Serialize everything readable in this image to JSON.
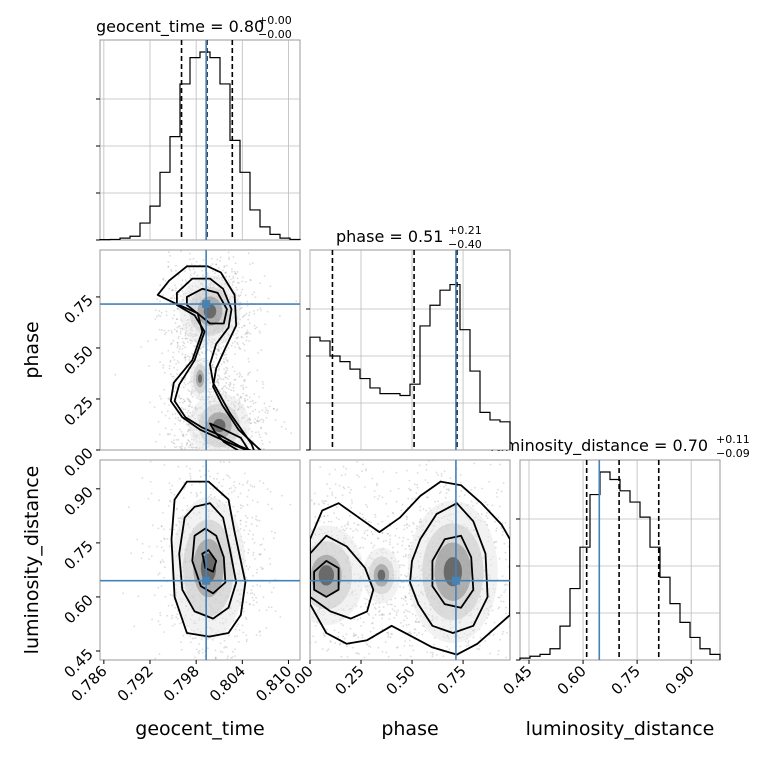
{
  "chart_data": {
    "type": "corner",
    "parameters": [
      "geocent_time",
      "phase",
      "luminosity_distance"
    ],
    "truth": {
      "geocent_time": 0.7993,
      "phase": 0.715,
      "luminosity_distance": 0.645
    },
    "titles": [
      {
        "name": "geocent_time",
        "median": "0.80",
        "plus": "+0.00",
        "minus": "−0.00"
      },
      {
        "name": "phase",
        "median": "0.51",
        "plus": "+0.21",
        "minus": "−0.40"
      },
      {
        "name": "luminosity_distance",
        "median": "0.70",
        "plus": "+0.11",
        "minus": "−0.09"
      }
    ],
    "axes": {
      "geocent_time": {
        "range": [
          0.7855,
          0.8115
        ],
        "ticks": [
          "0.786",
          "0.792",
          "0.798",
          "0.804",
          "0.810"
        ],
        "tick_values": [
          0.786,
          0.792,
          0.798,
          0.804,
          0.81
        ]
      },
      "phase": {
        "range": [
          0.0,
          0.98
        ],
        "ticks": [
          "0.00",
          "0.25",
          "0.50",
          "0.75"
        ],
        "tick_values": [
          0.0,
          0.25,
          0.5,
          0.75
        ]
      },
      "luminosity_distance": {
        "range": [
          0.425,
          0.98
        ],
        "ticks": [
          "0.45",
          "0.60",
          "0.75",
          "0.90"
        ],
        "tick_values": [
          0.45,
          0.6,
          0.75,
          0.9
        ]
      }
    },
    "histograms": {
      "geocent_time": {
        "quantiles": [
          0.7961,
          0.7994,
          0.8027
        ],
        "edges": [
          0.7855,
          0.7868,
          0.7881,
          0.7894,
          0.7907,
          0.792,
          0.7933,
          0.7946,
          0.7959,
          0.7972,
          0.7985,
          0.7998,
          0.8011,
          0.8024,
          0.8037,
          0.805,
          0.8063,
          0.8076,
          0.8089,
          0.8102,
          0.8115
        ],
        "heights": [
          0.002,
          0.003,
          0.01,
          0.02,
          0.09,
          0.18,
          0.36,
          0.55,
          0.83,
          0.97,
          1.0,
          0.97,
          0.83,
          0.53,
          0.36,
          0.16,
          0.07,
          0.03,
          0.01,
          0.003
        ]
      },
      "phase": {
        "quantiles": [
          0.11,
          0.51,
          0.72
        ],
        "edges": [
          0.0,
          0.049,
          0.098,
          0.147,
          0.196,
          0.245,
          0.294,
          0.343,
          0.392,
          0.441,
          0.49,
          0.539,
          0.588,
          0.637,
          0.686,
          0.735,
          0.784,
          0.833,
          0.882,
          0.931,
          0.98
        ],
        "heights": [
          0.6,
          0.58,
          0.5,
          0.47,
          0.43,
          0.38,
          0.33,
          0.3,
          0.3,
          0.29,
          0.35,
          0.66,
          0.77,
          0.85,
          0.88,
          0.64,
          0.42,
          0.2,
          0.16,
          0.15
        ]
      },
      "luminosity_distance": {
        "quantiles": [
          0.61,
          0.7,
          0.81
        ],
        "edges": [
          0.425,
          0.45275,
          0.4805,
          0.50825,
          0.536,
          0.56375,
          0.5915,
          0.61925,
          0.647,
          0.67475,
          0.7025,
          0.73025,
          0.758,
          0.78575,
          0.8135,
          0.84125,
          0.869,
          0.89675,
          0.9245,
          0.95225,
          0.98
        ],
        "heights": [
          0.01,
          0.02,
          0.03,
          0.06,
          0.18,
          0.38,
          0.6,
          0.88,
          1.0,
          0.96,
          0.9,
          0.84,
          0.76,
          0.6,
          0.44,
          0.3,
          0.2,
          0.12,
          0.06,
          0.03
        ]
      }
    },
    "contours": {
      "phase_vs_geocent_time": [
        {
          "level": "outer",
          "x": [
            0.7945,
            0.7968,
            0.7995,
            0.8012,
            0.803,
            0.8032,
            0.8018,
            0.8006,
            0.8002,
            0.8014,
            0.8035,
            0.8066,
            0.8058,
            0.8032,
            0.8008,
            0.7985,
            0.7962,
            0.7947,
            0.7951,
            0.7975,
            0.7988,
            0.7982,
            0.7952,
            0.793
          ],
          "y": [
            0.83,
            0.9,
            0.9,
            0.87,
            0.76,
            0.61,
            0.5,
            0.4,
            0.31,
            0.22,
            0.1,
            -0.01,
            -0.02,
            0.02,
            0.06,
            0.1,
            0.16,
            0.24,
            0.33,
            0.44,
            0.58,
            0.67,
            0.72,
            0.76
          ]
        },
        {
          "level": "middle",
          "x": [
            0.7955,
            0.7975,
            0.7998,
            0.8015,
            0.8026,
            0.8022,
            0.8006,
            0.7998,
            0.8002,
            0.8024,
            0.8052,
            0.8056,
            0.8036,
            0.8012,
            0.7988,
            0.7966,
            0.7952,
            0.7958,
            0.7978,
            0.7991,
            0.7978,
            0.7955
          ],
          "y": [
            0.77,
            0.84,
            0.84,
            0.79,
            0.69,
            0.6,
            0.52,
            0.42,
            0.33,
            0.18,
            0.03,
            -0.01,
            0.02,
            0.07,
            0.11,
            0.16,
            0.24,
            0.32,
            0.44,
            0.58,
            0.66,
            0.71
          ]
        },
        {
          "level": "inner",
          "x": [
            0.7968,
            0.7988,
            0.8008,
            0.802,
            0.8016,
            0.7998,
            0.7985,
            0.7968
          ],
          "y": [
            0.75,
            0.79,
            0.77,
            0.69,
            0.62,
            0.62,
            0.66,
            0.71
          ]
        },
        {
          "level": "inner2",
          "x": [
            0.7998,
            0.8016,
            0.8038,
            0.8048,
            0.8038,
            0.8016,
            0.8004
          ],
          "y": [
            0.13,
            0.1,
            0.06,
            0.0,
            -0.01,
            0.04,
            0.09
          ]
        }
      ],
      "luminosity_distance_vs_geocent_time": [
        {
          "level": "outer",
          "x": [
            0.7952,
            0.7968,
            0.7996,
            0.8022,
            0.803,
            0.8044,
            0.8038,
            0.8022,
            0.7997,
            0.7968,
            0.7952,
            0.7948
          ],
          "y": [
            0.87,
            0.92,
            0.92,
            0.87,
            0.78,
            0.64,
            0.55,
            0.5,
            0.49,
            0.5,
            0.6,
            0.76
          ]
        },
        {
          "level": "middle",
          "x": [
            0.7965,
            0.7978,
            0.7998,
            0.8015,
            0.8024,
            0.8032,
            0.8022,
            0.8002,
            0.7978,
            0.7962,
            0.7958
          ],
          "y": [
            0.82,
            0.85,
            0.86,
            0.82,
            0.73,
            0.64,
            0.57,
            0.54,
            0.56,
            0.62,
            0.72
          ]
        },
        {
          "level": "inner",
          "x": [
            0.7978,
            0.7992,
            0.8006,
            0.8016,
            0.8018,
            0.8002,
            0.7986,
            0.7975
          ],
          "y": [
            0.77,
            0.79,
            0.77,
            0.71,
            0.64,
            0.61,
            0.63,
            0.7
          ]
        },
        {
          "level": "inner2",
          "x": [
            0.7988,
            0.7996,
            0.8006,
            0.8002,
            0.7992
          ],
          "y": [
            0.72,
            0.73,
            0.7,
            0.67,
            0.68
          ]
        }
      ],
      "luminosity_distance_vs_phase": [
        {
          "level": "outer",
          "x": [
            0.0,
            0.06,
            0.14,
            0.24,
            0.34,
            0.44,
            0.54,
            0.64,
            0.74,
            0.84,
            0.94,
            0.98,
            0.98,
            0.92,
            0.82,
            0.72,
            0.6,
            0.5,
            0.4,
            0.28,
            0.18,
            0.08,
            0.0
          ],
          "y": [
            0.76,
            0.84,
            0.86,
            0.82,
            0.78,
            0.82,
            0.88,
            0.92,
            0.91,
            0.86,
            0.8,
            0.76,
            0.55,
            0.52,
            0.47,
            0.44,
            0.46,
            0.49,
            0.52,
            0.48,
            0.47,
            0.5,
            0.58
          ]
        },
        {
          "level": "middle",
          "x": [
            0.0,
            0.08,
            0.18,
            0.27,
            0.31,
            0.28,
            0.2,
            0.1,
            0.0
          ],
          "y": [
            0.72,
            0.77,
            0.74,
            0.68,
            0.62,
            0.56,
            0.54,
            0.56,
            0.6
          ]
        },
        {
          "level": "middle2",
          "x": [
            0.5,
            0.54,
            0.62,
            0.72,
            0.8,
            0.86,
            0.87,
            0.8,
            0.7,
            0.6,
            0.53,
            0.49
          ],
          "y": [
            0.7,
            0.76,
            0.83,
            0.86,
            0.81,
            0.72,
            0.6,
            0.52,
            0.5,
            0.52,
            0.58,
            0.64
          ]
        },
        {
          "level": "inner",
          "x": [
            0.6,
            0.66,
            0.74,
            0.79,
            0.8,
            0.74,
            0.66,
            0.6
          ],
          "y": [
            0.7,
            0.76,
            0.77,
            0.71,
            0.62,
            0.57,
            0.58,
            0.63
          ]
        },
        {
          "level": "inner0",
          "x": [
            0.02,
            0.08,
            0.14,
            0.14,
            0.08,
            0.02
          ],
          "y": [
            0.67,
            0.7,
            0.68,
            0.62,
            0.6,
            0.62
          ]
        }
      ]
    }
  }
}
